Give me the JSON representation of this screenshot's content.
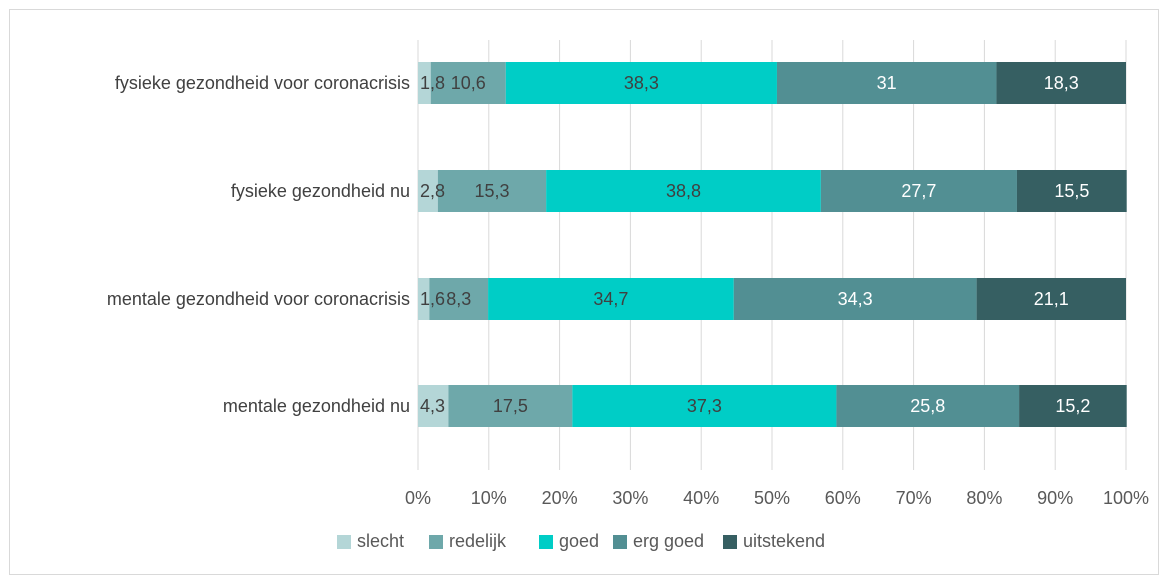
{
  "chart_data": {
    "type": "bar",
    "orientation": "horizontal",
    "stacked": "percent",
    "categories": [
      "fysieke gezondheid voor coronacrisis",
      "fysieke gezondheid nu",
      "mentale gezondheid voor coronacrisis",
      "mentale gezondheid nu"
    ],
    "series": [
      {
        "name": "slecht",
        "color": "#b4d6d7",
        "label_color": "#404040",
        "values": [
          1.8,
          2.8,
          1.6,
          4.3
        ],
        "labels": [
          "1,8",
          "2,8",
          "1,6",
          "4,3"
        ]
      },
      {
        "name": "redelijk",
        "color": "#6ea8aa",
        "label_color": "#404040",
        "values": [
          10.6,
          15.3,
          8.3,
          17.5
        ],
        "labels": [
          "10,6",
          "15,3",
          "8,3",
          "17,5"
        ]
      },
      {
        "name": "goed",
        "color": "#00cdc6",
        "label_color": "#404040",
        "values": [
          38.3,
          38.8,
          34.7,
          37.3
        ],
        "labels": [
          "38,3",
          "38,8",
          "34,7",
          "37,3"
        ]
      },
      {
        "name": "erg goed",
        "color": "#528f93",
        "label_color": "#ffffff",
        "values": [
          31,
          27.7,
          34.3,
          25.8
        ],
        "labels": [
          "31",
          "27,7",
          "34,3",
          "25,8"
        ]
      },
      {
        "name": "uitstekend",
        "color": "#365f62",
        "label_color": "#ffffff",
        "values": [
          18.3,
          15.5,
          21.1,
          15.2
        ],
        "labels": [
          "18,3",
          "15,5",
          "21,1",
          "15,2"
        ]
      }
    ],
    "xlim": [
      0,
      100
    ],
    "x_ticks": [
      "0%",
      "10%",
      "20%",
      "30%",
      "40%",
      "50%",
      "60%",
      "70%",
      "80%",
      "90%",
      "100%"
    ],
    "grid": "vertical",
    "legend_position": "bottom"
  }
}
